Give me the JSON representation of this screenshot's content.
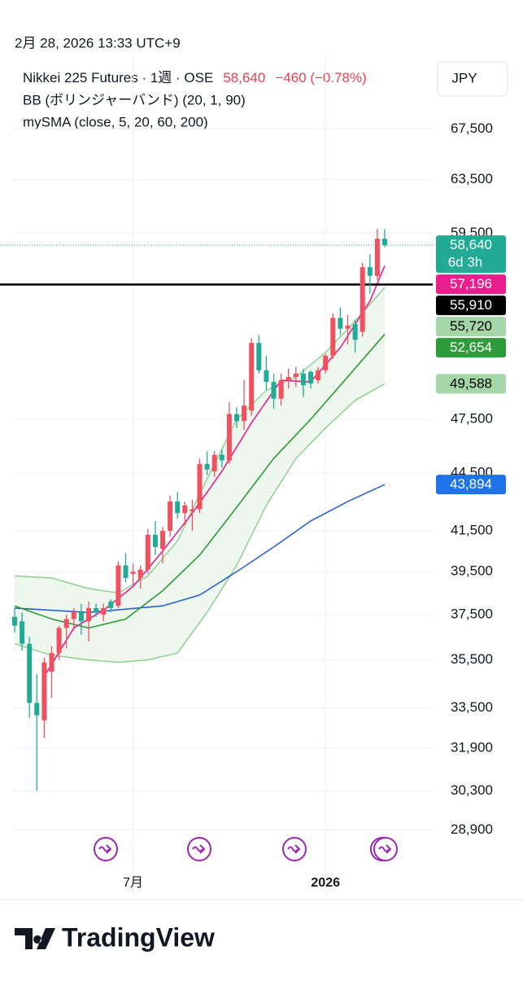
{
  "header": {
    "timestamp": "2月 28, 2026 13:33 UTC+9",
    "currency": "JPY",
    "brand": "TradingView"
  },
  "chart_data": {
    "type": "candlestick",
    "symbol": "Nikkei 225 Futures · 1週 · OSE",
    "last": "58,640",
    "change": "−460 (−0.78%)",
    "indicators": [
      "BB (ボリンジャーバンド) (20, 1, 90)",
      "mySMA (close, 5, 20, 60, 200)"
    ],
    "log_scale": true,
    "grid": true,
    "up_color": "#f0505f",
    "down_color": "#22ab94",
    "ylim": [
      28600,
      74000
    ],
    "yticks": [
      {
        "value": 28900,
        "label": "28,900"
      },
      {
        "value": 30300,
        "label": "30,300"
      },
      {
        "value": 31900,
        "label": "31,900"
      },
      {
        "value": 33500,
        "label": "33,500"
      },
      {
        "value": 35500,
        "label": "35,500"
      },
      {
        "value": 37500,
        "label": "37,500"
      },
      {
        "value": 39500,
        "label": "39,500"
      },
      {
        "value": 41500,
        "label": "41,500"
      },
      {
        "value": 44500,
        "label": "44,500"
      },
      {
        "value": 47500,
        "label": "47,500"
      },
      {
        "value": 59500,
        "label": "59,500"
      },
      {
        "value": 63500,
        "label": "63,500"
      },
      {
        "value": 67500,
        "label": "67,500"
      }
    ],
    "categories": [
      null,
      null,
      null,
      null,
      null,
      null,
      null,
      null,
      null,
      null,
      null,
      null,
      null,
      null,
      null,
      null,
      "7月",
      null,
      null,
      null,
      null,
      null,
      null,
      null,
      null,
      null,
      null,
      null,
      null,
      null,
      null,
      null,
      null,
      null,
      null,
      null,
      null,
      null,
      null,
      null,
      null,
      null,
      "2026",
      null,
      null,
      null,
      null,
      null,
      null,
      null,
      null
    ],
    "ohlc": [
      [
        37400,
        37800,
        36700,
        37000
      ],
      [
        37200,
        37600,
        35900,
        36200
      ],
      [
        36200,
        36500,
        33100,
        33700
      ],
      [
        33700,
        34900,
        30300,
        33200
      ],
      [
        33000,
        35600,
        32300,
        35400
      ],
      [
        35000,
        36100,
        33900,
        35800
      ],
      [
        35800,
        37000,
        35500,
        36900
      ],
      [
        36900,
        37500,
        36000,
        37300
      ],
      [
        37300,
        37800,
        36800,
        37600
      ],
      [
        37600,
        38000,
        36600,
        37200
      ],
      [
        37200,
        38100,
        36300,
        37800
      ],
      [
        37800,
        38000,
        37400,
        37600
      ],
      [
        37500,
        38000,
        37200,
        37800
      ],
      [
        38100,
        38200,
        37600,
        37800
      ],
      [
        37900,
        40000,
        37800,
        39800
      ],
      [
        39800,
        40400,
        39000,
        39200
      ],
      [
        39400,
        39900,
        38800,
        39500
      ],
      [
        39200,
        39800,
        38700,
        39600
      ],
      [
        39600,
        41600,
        39400,
        41300
      ],
      [
        41300,
        42000,
        40300,
        40700
      ],
      [
        40600,
        41700,
        39900,
        41500
      ],
      [
        41500,
        43300,
        41200,
        43000
      ],
      [
        43000,
        43500,
        42100,
        42400
      ],
      [
        42400,
        43000,
        41800,
        42800
      ],
      [
        42500,
        43100,
        41500,
        42600
      ],
      [
        42600,
        45300,
        42400,
        45000
      ],
      [
        45000,
        45700,
        44400,
        44700
      ],
      [
        44600,
        45700,
        44300,
        45500
      ],
      [
        45500,
        45800,
        44800,
        45200
      ],
      [
        45200,
        48500,
        45000,
        47800
      ],
      [
        47800,
        48200,
        47000,
        47400
      ],
      [
        47400,
        49800,
        46900,
        48300
      ],
      [
        48000,
        52400,
        47700,
        52100
      ],
      [
        52100,
        52600,
        50200,
        50400
      ],
      [
        50400,
        51300,
        49200,
        49700
      ],
      [
        49700,
        50200,
        48100,
        48700
      ],
      [
        48700,
        50200,
        48300,
        49800
      ],
      [
        49800,
        50500,
        49300,
        50000
      ],
      [
        50000,
        50600,
        49400,
        50200
      ],
      [
        50200,
        50500,
        48800,
        49500
      ],
      [
        50300,
        50400,
        49300,
        49600
      ],
      [
        49800,
        50600,
        49600,
        50400
      ],
      [
        50400,
        51400,
        50200,
        51300
      ],
      [
        51300,
        54000,
        51100,
        53700
      ],
      [
        53700,
        54400,
        52600,
        53000
      ],
      [
        53000,
        53900,
        52000,
        53200
      ],
      [
        53300,
        53600,
        51500,
        52300
      ],
      [
        52800,
        57400,
        52500,
        57100
      ],
      [
        57100,
        58000,
        55300,
        56500
      ],
      [
        56500,
        59800,
        56200,
        59100
      ],
      [
        59100,
        59800,
        58500,
        58640
      ]
    ],
    "overlays": [
      {
        "color": "#2a62c9",
        "x": [
          0,
          10,
          20,
          25,
          30,
          35,
          40,
          45,
          50
        ],
        "values": [
          37800,
          37600,
          37900,
          38400,
          39500,
          40700,
          42000,
          43000,
          43894
        ]
      },
      {
        "color": "#2e9b3a",
        "x": [
          0,
          5,
          10,
          15,
          20,
          25,
          30,
          35,
          40,
          45,
          50
        ],
        "values": [
          37900,
          37300,
          36900,
          37300,
          38600,
          40300,
          42700,
          45300,
          47500,
          50000,
          52654
        ]
      },
      {
        "color": "#e91e8c",
        "x": [
          4,
          8,
          12,
          16,
          20,
          24,
          28,
          32,
          36,
          40,
          44,
          48,
          50
        ],
        "values": [
          34800,
          36900,
          37700,
          38800,
          40500,
          42400,
          44600,
          47300,
          49800,
          49700,
          51800,
          54800,
          57196
        ]
      }
    ],
    "band": {
      "color": "#8fd08f",
      "fill": "#eef7ee",
      "x": [
        0,
        5,
        10,
        14,
        18,
        22,
        26,
        30,
        34,
        38,
        42,
        46,
        50
      ],
      "upper": [
        39300,
        39200,
        38700,
        38500,
        39300,
        41000,
        44200,
        47500,
        49200,
        50000,
        51500,
        53500,
        55720
      ],
      "lower": [
        36200,
        35700,
        35500,
        35400,
        35500,
        35800,
        37600,
        39800,
        42800,
        45300,
        47000,
        48600,
        49588
      ]
    },
    "hline": {
      "value": 55910,
      "color": "#000000"
    },
    "last_line": {
      "value": 58640,
      "color": "#22ab94"
    },
    "price_labels": [
      {
        "value": 58640,
        "label": "58,640",
        "countdown": "6d 3h",
        "bg": "#22ab94",
        "fg": "#ffffff"
      },
      {
        "value": 57196,
        "label": "57,196",
        "bg": "#e91e8c",
        "fg": "#ffffff"
      },
      {
        "value": 55910,
        "label": "55,910",
        "bg": "#000000",
        "fg": "#ffffff"
      },
      {
        "value": 55720,
        "label": "55,720",
        "bg": "#a5d6a7",
        "fg": "#000000"
      },
      {
        "value": 52654,
        "label": "52,654",
        "bg": "#2e9b3a",
        "fg": "#ffffff"
      },
      {
        "value": 49588,
        "label": "49,588",
        "bg": "#a5d6a7",
        "fg": "#000000"
      },
      {
        "value": 43894,
        "label": "43,894",
        "bg": "#1e73e8",
        "fg": "#ffffff"
      }
    ]
  }
}
